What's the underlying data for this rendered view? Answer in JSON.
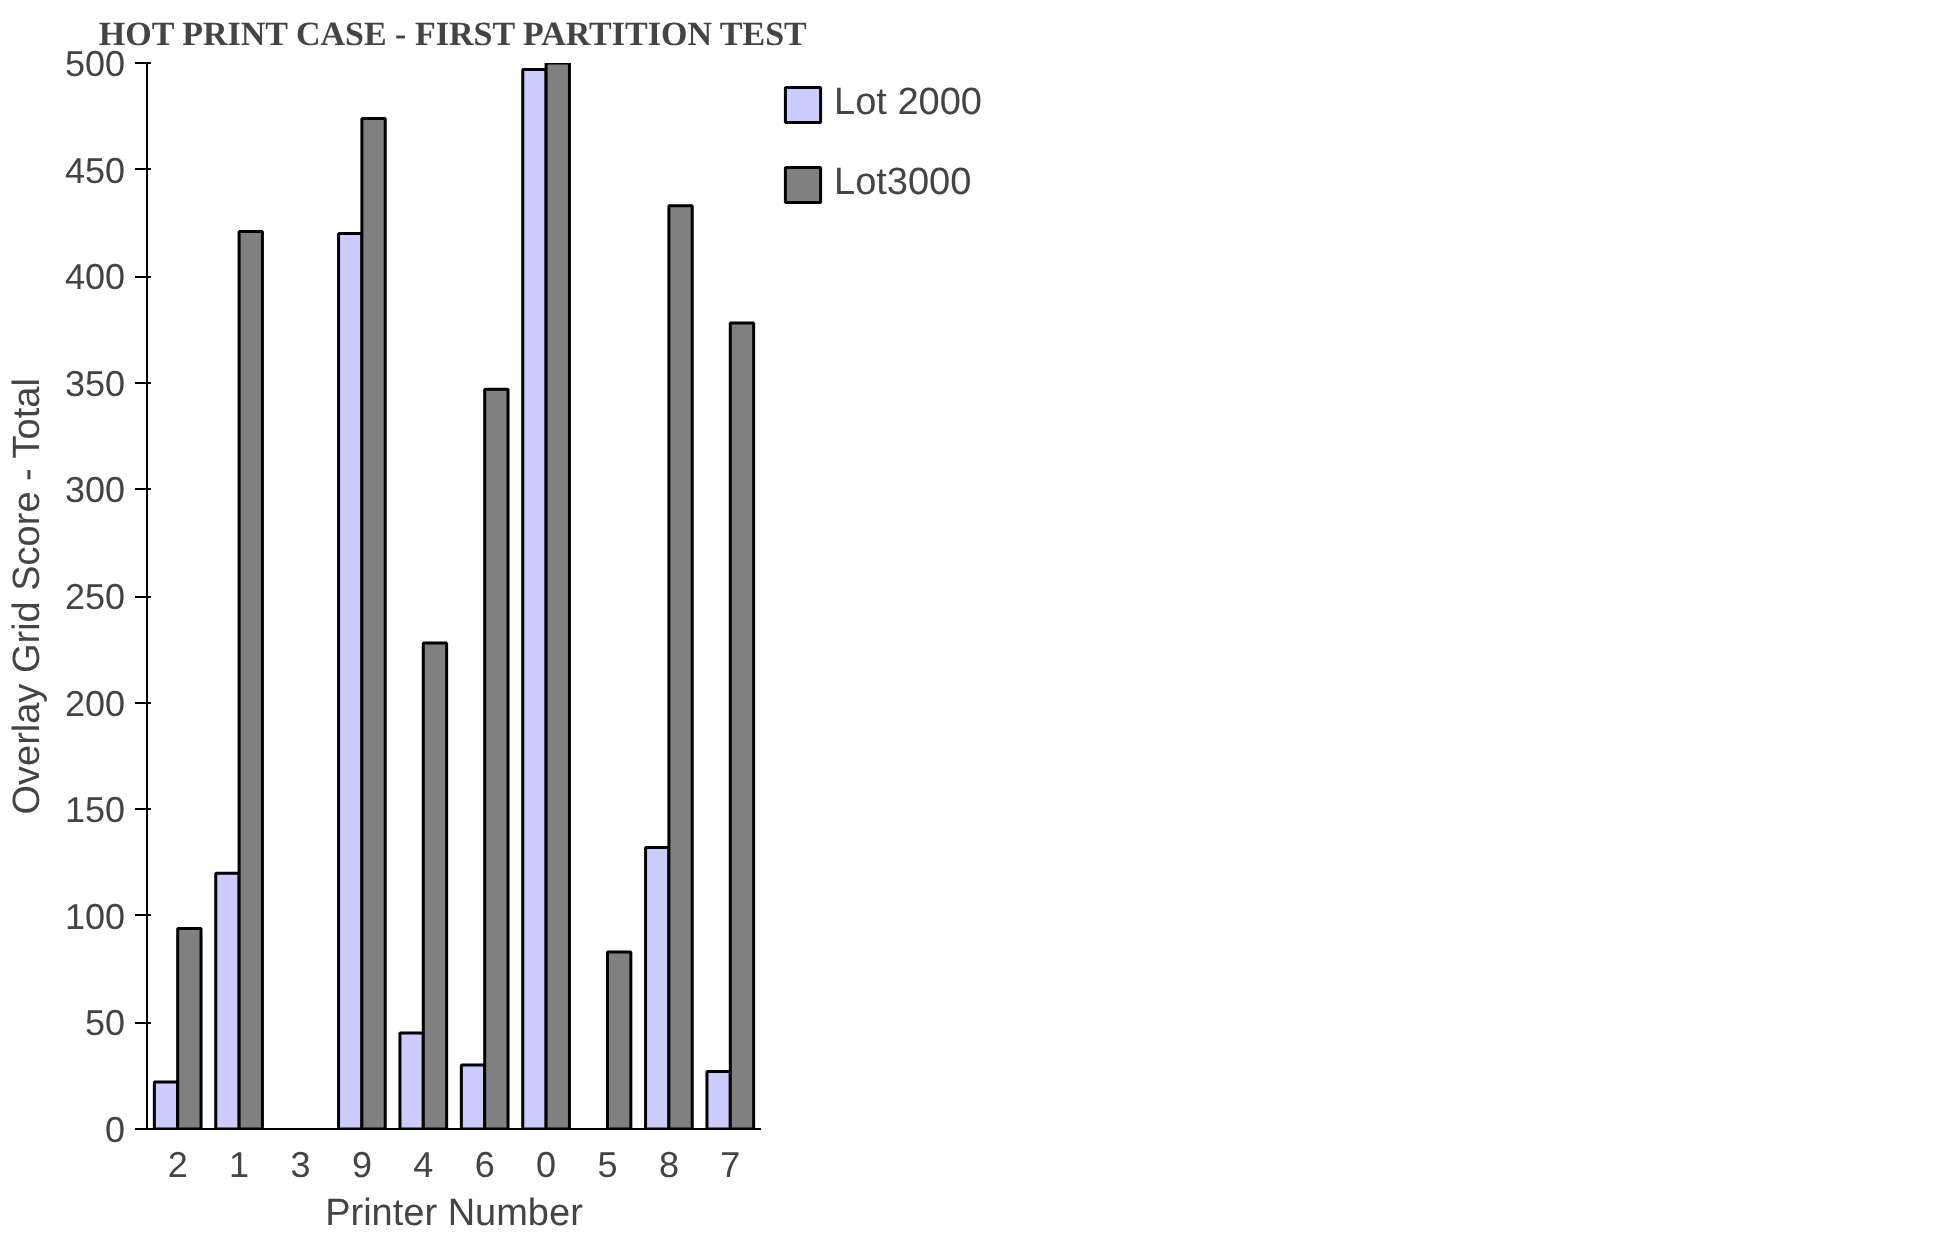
{
  "chart_data": {
    "type": "bar",
    "title": "HOT PRINT CASE - FIRST PARTITION TEST",
    "xlabel": "Printer Number",
    "ylabel": "Overlay Grid Score - Total",
    "categories": [
      "2",
      "1",
      "3",
      "9",
      "4",
      "6",
      "0",
      "5",
      "8",
      "7"
    ],
    "series": [
      {
        "name": "Lot 2000",
        "color": "#ccccff",
        "values": [
          22,
          120,
          null,
          420,
          45,
          30,
          497,
          null,
          132,
          27
        ]
      },
      {
        "name": "Lot3000",
        "color": "#808080",
        "values": [
          94,
          421,
          null,
          474,
          228,
          347,
          500,
          83,
          433,
          378
        ]
      }
    ],
    "ylim": [
      0,
      500
    ],
    "yticks": [
      0,
      50,
      100,
      150,
      200,
      250,
      300,
      350,
      400,
      450,
      500
    ],
    "grid": false,
    "legend": "top right"
  }
}
